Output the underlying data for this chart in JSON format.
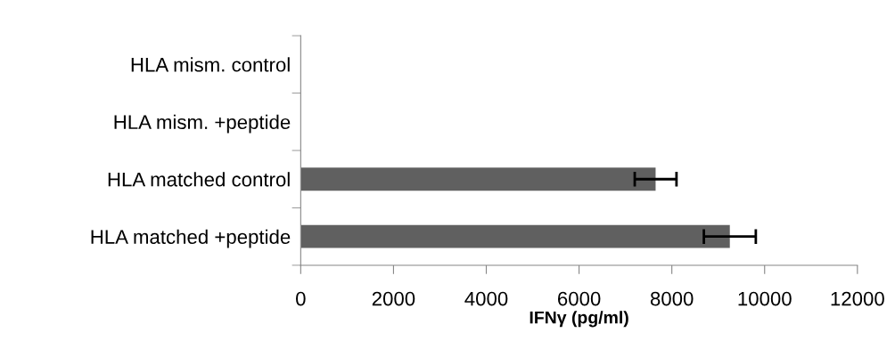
{
  "chart_data": {
    "type": "bar",
    "orientation": "horizontal",
    "xlabel": "IFNγ (pg/ml)",
    "categories": [
      "HLA mism. control",
      "HLA mism. +peptide",
      "HLA matched control",
      "HLA matched +peptide"
    ],
    "values": [
      0,
      0,
      7650,
      9250
    ],
    "errors": [
      null,
      null,
      450,
      560
    ],
    "color": "#606060",
    "xlim": [
      0,
      12000
    ],
    "xticks": [
      0,
      2000,
      4000,
      6000,
      8000,
      10000,
      12000
    ],
    "grid": false,
    "legend": false
  }
}
